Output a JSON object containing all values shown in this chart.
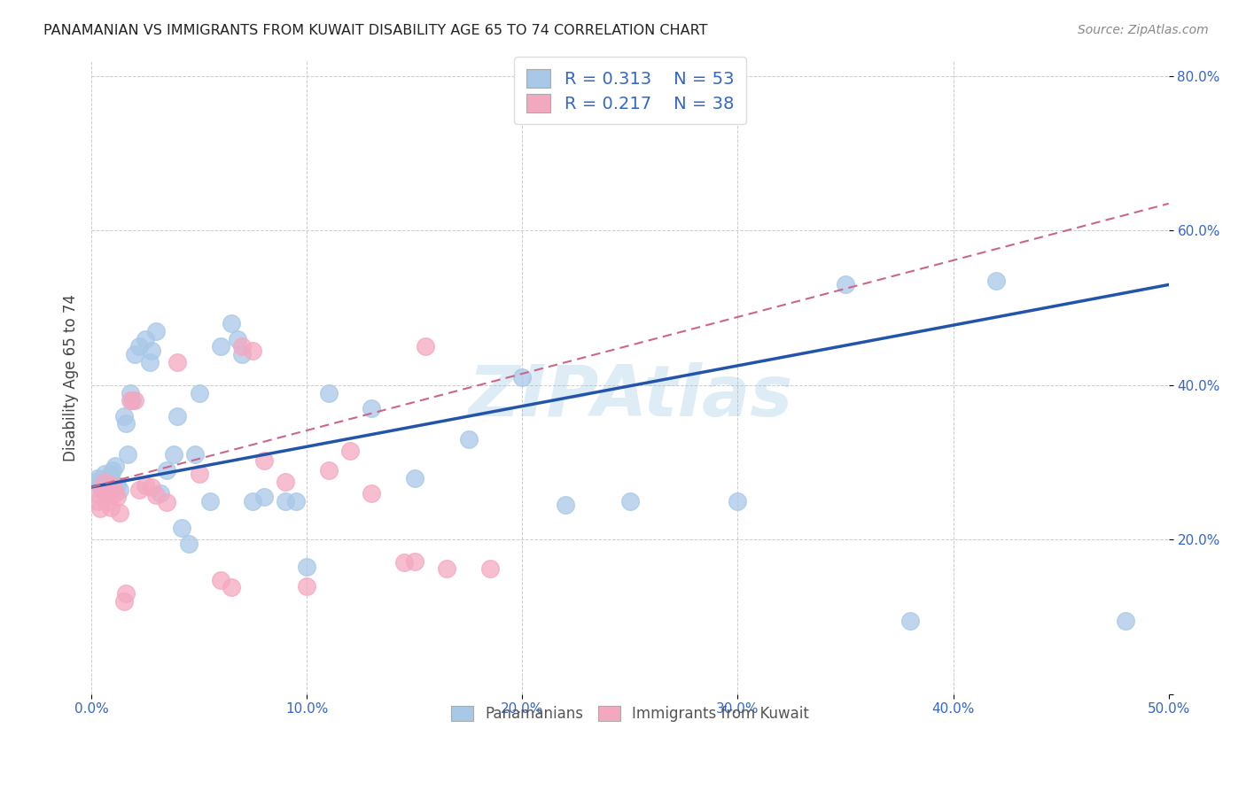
{
  "title": "PANAMANIAN VS IMMIGRANTS FROM KUWAIT DISABILITY AGE 65 TO 74 CORRELATION CHART",
  "source": "Source: ZipAtlas.com",
  "ylabel": "Disability Age 65 to 74",
  "xlim": [
    0.0,
    0.5
  ],
  "ylim": [
    0.0,
    0.82
  ],
  "xticks": [
    0.0,
    0.1,
    0.2,
    0.3,
    0.4,
    0.5
  ],
  "yticks": [
    0.0,
    0.2,
    0.4,
    0.6,
    0.8
  ],
  "xtick_labels": [
    "0.0%",
    "10.0%",
    "20.0%",
    "30.0%",
    "40.0%",
    "50.0%"
  ],
  "ytick_labels": [
    "",
    "20.0%",
    "40.0%",
    "60.0%",
    "80.0%"
  ],
  "blue_color": "#A8C8E8",
  "pink_color": "#F4A8C0",
  "blue_line_color": "#2255AA",
  "pink_line_color": "#CC6688",
  "R_blue": 0.313,
  "N_blue": 53,
  "R_pink": 0.217,
  "N_pink": 38,
  "watermark": "ZIPAtlas",
  "legend_labels": [
    "Panamanians",
    "Immigrants from Kuwait"
  ],
  "blue_line_x": [
    0.0,
    0.5
  ],
  "blue_line_y": [
    0.268,
    0.53
  ],
  "pink_line_x": [
    0.0,
    0.5
  ],
  "pink_line_y": [
    0.268,
    0.635
  ],
  "blue_points_x": [
    0.002,
    0.003,
    0.004,
    0.005,
    0.006,
    0.007,
    0.008,
    0.009,
    0.01,
    0.011,
    0.012,
    0.013,
    0.015,
    0.016,
    0.017,
    0.018,
    0.019,
    0.02,
    0.022,
    0.025,
    0.027,
    0.028,
    0.03,
    0.032,
    0.035,
    0.038,
    0.04,
    0.042,
    0.045,
    0.048,
    0.05,
    0.055,
    0.06,
    0.065,
    0.068,
    0.07,
    0.075,
    0.08,
    0.09,
    0.095,
    0.1,
    0.11,
    0.13,
    0.15,
    0.175,
    0.2,
    0.22,
    0.25,
    0.3,
    0.35,
    0.38,
    0.42,
    0.48
  ],
  "blue_points_y": [
    0.275,
    0.28,
    0.27,
    0.265,
    0.285,
    0.26,
    0.275,
    0.285,
    0.29,
    0.295,
    0.27,
    0.265,
    0.36,
    0.35,
    0.31,
    0.39,
    0.38,
    0.44,
    0.45,
    0.46,
    0.43,
    0.445,
    0.47,
    0.26,
    0.29,
    0.31,
    0.36,
    0.215,
    0.195,
    0.31,
    0.39,
    0.25,
    0.45,
    0.48,
    0.46,
    0.44,
    0.25,
    0.255,
    0.25,
    0.25,
    0.165,
    0.39,
    0.37,
    0.28,
    0.33,
    0.41,
    0.245,
    0.25,
    0.25,
    0.53,
    0.095,
    0.535,
    0.095
  ],
  "pink_points_x": [
    0.002,
    0.003,
    0.004,
    0.005,
    0.006,
    0.007,
    0.008,
    0.009,
    0.01,
    0.011,
    0.012,
    0.013,
    0.015,
    0.016,
    0.018,
    0.02,
    0.022,
    0.025,
    0.028,
    0.03,
    0.035,
    0.04,
    0.05,
    0.06,
    0.065,
    0.07,
    0.075,
    0.08,
    0.09,
    0.1,
    0.11,
    0.12,
    0.13,
    0.145,
    0.15,
    0.155,
    0.165,
    0.185
  ],
  "pink_points_y": [
    0.26,
    0.25,
    0.24,
    0.265,
    0.275,
    0.248,
    0.258,
    0.242,
    0.27,
    0.26,
    0.255,
    0.235,
    0.12,
    0.13,
    0.38,
    0.38,
    0.265,
    0.27,
    0.268,
    0.258,
    0.248,
    0.43,
    0.285,
    0.148,
    0.138,
    0.45,
    0.445,
    0.302,
    0.275,
    0.14,
    0.29,
    0.315,
    0.26,
    0.17,
    0.172,
    0.45,
    0.162,
    0.162
  ]
}
